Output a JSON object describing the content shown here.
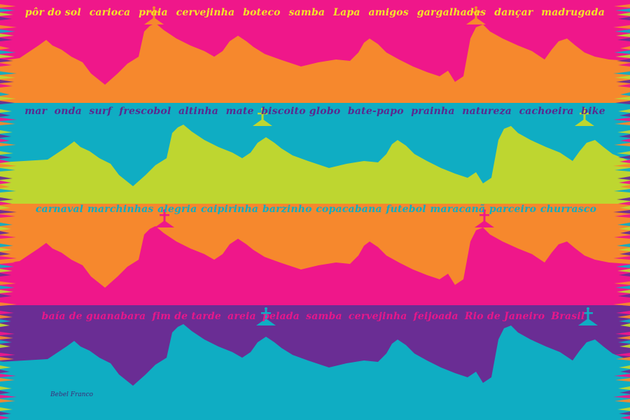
{
  "colors": {
    "pink": "#ef178a",
    "orange": "#f6882d",
    "teal": "#0fadc3",
    "lime": "#bed630",
    "purple": "#6a2d94",
    "yellow_text": "#f4e528",
    "navy_text": "#5a2a8f",
    "pink_text": "#e8178a",
    "signature": "#3f2b78"
  },
  "stripes": [
    {
      "sky": "#ef178a",
      "mountain": "#f6882d",
      "text_color": "#f4e528"
    },
    {
      "sky": "#0fadc3",
      "mountain": "#bed630",
      "text_color": "#5a2a8f"
    },
    {
      "sky": "#f6882d",
      "mountain": "#ef178a",
      "text_color": "#0fadc3"
    },
    {
      "sky": "#6a2d94",
      "mountain": "#0fadc3",
      "text_color": "#e8178a"
    }
  ],
  "fringe_palette": [
    "#ef178a",
    "#f6882d",
    "#0fadc3",
    "#bed630",
    "#6a2d94"
  ],
  "word_lines": [
    [
      "pôr do sol",
      "carioca",
      "praia",
      "cervejinha",
      "boteco",
      "samba",
      "Lapa",
      "amigos",
      "gargalhadas",
      "dançar",
      "madrugada"
    ],
    [
      "mar",
      "onda",
      "surf",
      "frescobol",
      "altinha",
      "mate",
      "biscoito globo",
      "bate-papo",
      "prainha",
      "natureza",
      "cachoeira",
      "bike"
    ],
    [
      "carnaval",
      "marchinhas",
      "alegria",
      "caipirinha",
      "barzinho",
      "copacabana",
      "futebol",
      "maracanã",
      "parceiro",
      "churrasco"
    ],
    [
      "baía de guanabara",
      "fim de tarde",
      "areia",
      "pelada",
      "samba",
      "cervejinha",
      "feijoada",
      "Rio de Janeiro",
      "Brasil"
    ]
  ],
  "signature": "Bebel Franco"
}
